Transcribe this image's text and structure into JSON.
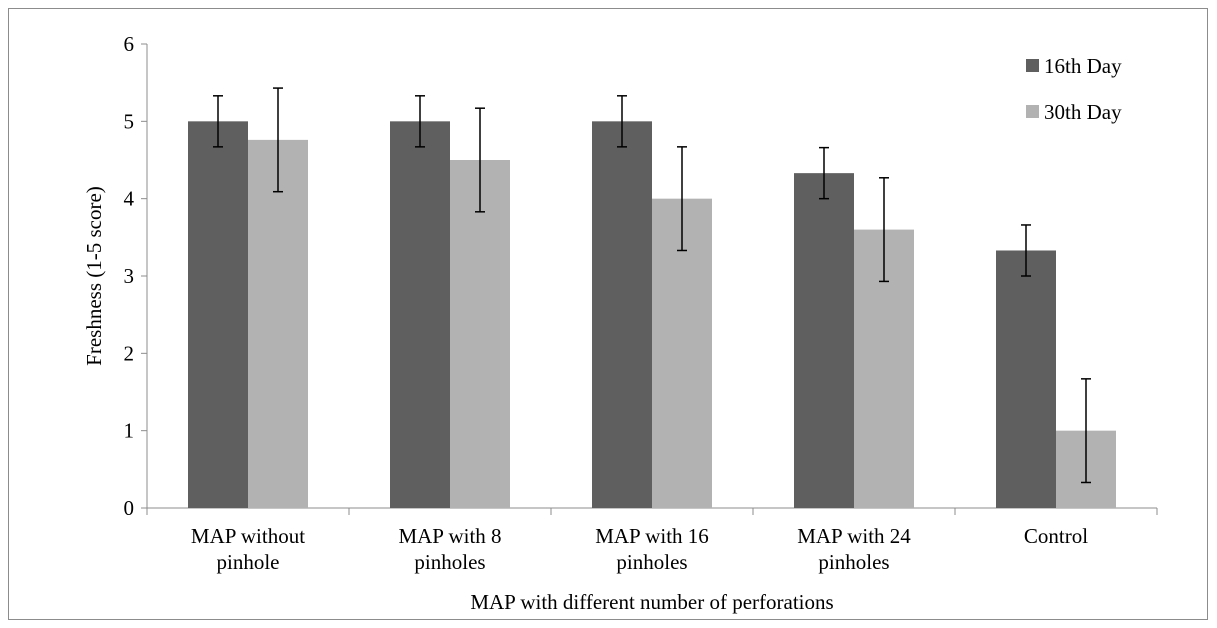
{
  "chart_data": {
    "type": "bar",
    "categories": [
      [
        "MAP without",
        "pinhole"
      ],
      [
        "MAP with 8",
        "pinholes"
      ],
      [
        "MAP with 16",
        "pinholes"
      ],
      [
        "MAP with 24",
        "pinholes"
      ],
      [
        "Control"
      ]
    ],
    "series": [
      {
        "name": "16th Day",
        "color": "#5f5f5f",
        "values": [
          5.0,
          5.0,
          5.0,
          4.33,
          3.33
        ],
        "errors": [
          0.33,
          0.33,
          0.33,
          0.33,
          0.33
        ]
      },
      {
        "name": "30th Day",
        "color": "#b2b2b2",
        "values": [
          4.76,
          4.5,
          4.0,
          3.6,
          1.0
        ],
        "errors": [
          0.67,
          0.67,
          0.67,
          0.67,
          0.67
        ]
      }
    ],
    "xlabel": "MAP with different number of  perforations",
    "ylabel": "Freshness (1-5 score)",
    "ylim": [
      0,
      6
    ],
    "yticks": [
      "0",
      "1",
      "2",
      "3",
      "4",
      "5",
      "6"
    ],
    "grid": false,
    "legend_position": "top-right"
  }
}
